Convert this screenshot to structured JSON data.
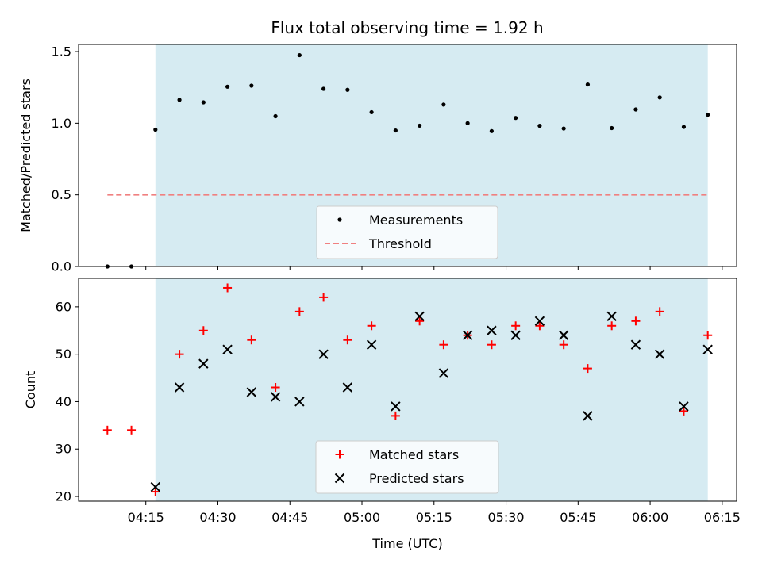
{
  "chart_data": [
    {
      "type": "scatter",
      "title": "Flux total observing time = 1.92 h",
      "xlabel": "",
      "ylabel": "Matched/Predicted stars",
      "ylim": [
        0,
        1.55
      ],
      "xlim": [
        "04:01",
        "06:18"
      ],
      "yticks": [
        "0.0",
        "0.5",
        "1.0",
        "1.5"
      ],
      "grid": false,
      "legend_position": "lower-center",
      "shaded_span": {
        "from": "04:17",
        "to": "06:12",
        "color": "#add8e6"
      },
      "threshold": {
        "name": "Threshold",
        "value": 0.5,
        "from": "04:07",
        "to": "06:12",
        "color": "#f08080",
        "style": "dashed"
      },
      "series": [
        {
          "name": "Measurements",
          "color": "#000000",
          "marker": "dot",
          "points": [
            [
              "04:07",
              0.0
            ],
            [
              "04:12",
              0.0
            ],
            [
              "04:17",
              0.955
            ],
            [
              "04:22",
              1.163
            ],
            [
              "04:27",
              1.146
            ],
            [
              "04:32",
              1.255
            ],
            [
              "04:37",
              1.262
            ],
            [
              "04:42",
              1.049
            ],
            [
              "04:47",
              1.475
            ],
            [
              "04:52",
              1.24
            ],
            [
              "04:57",
              1.233
            ],
            [
              "05:02",
              1.077
            ],
            [
              "05:07",
              0.949
            ],
            [
              "05:12",
              0.983
            ],
            [
              "05:17",
              1.13
            ],
            [
              "05:22",
              1.0
            ],
            [
              "05:27",
              0.945
            ],
            [
              "05:32",
              1.037
            ],
            [
              "05:37",
              0.982
            ],
            [
              "05:42",
              0.963
            ],
            [
              "05:47",
              1.27
            ],
            [
              "05:52",
              0.966
            ],
            [
              "05:57",
              1.096
            ],
            [
              "06:02",
              1.18
            ],
            [
              "06:07",
              0.974
            ],
            [
              "06:12",
              1.059
            ]
          ]
        }
      ]
    },
    {
      "type": "scatter",
      "title": "",
      "xlabel": "Time (UTC)",
      "ylabel": "Count",
      "ylim": [
        19,
        66
      ],
      "xlim": [
        "04:01",
        "06:18"
      ],
      "yticks": [
        "20",
        "30",
        "40",
        "50",
        "60"
      ],
      "xticks": [
        "04:15",
        "04:30",
        "04:45",
        "05:00",
        "05:15",
        "05:30",
        "05:45",
        "06:00",
        "06:15"
      ],
      "grid": false,
      "legend_position": "lower-center",
      "shaded_span": {
        "from": "04:17",
        "to": "06:12",
        "color": "#add8e6"
      },
      "series": [
        {
          "name": "Matched stars",
          "color": "#ff0000",
          "marker": "plus",
          "points": [
            [
              "04:07",
              34
            ],
            [
              "04:12",
              34
            ],
            [
              "04:17",
              21
            ],
            [
              "04:22",
              50
            ],
            [
              "04:27",
              55
            ],
            [
              "04:32",
              64
            ],
            [
              "04:37",
              53
            ],
            [
              "04:42",
              43
            ],
            [
              "04:47",
              59
            ],
            [
              "04:52",
              62
            ],
            [
              "04:57",
              53
            ],
            [
              "05:02",
              56
            ],
            [
              "05:07",
              37
            ],
            [
              "05:12",
              57
            ],
            [
              "05:17",
              52
            ],
            [
              "05:22",
              54
            ],
            [
              "05:27",
              52
            ],
            [
              "05:32",
              56
            ],
            [
              "05:37",
              56
            ],
            [
              "05:42",
              52
            ],
            [
              "05:47",
              47
            ],
            [
              "05:52",
              56
            ],
            [
              "05:57",
              57
            ],
            [
              "06:02",
              59
            ],
            [
              "06:07",
              38
            ],
            [
              "06:12",
              54
            ]
          ]
        },
        {
          "name": "Predicted stars",
          "color": "#000000",
          "marker": "x",
          "points": [
            [
              "04:17",
              22
            ],
            [
              "04:22",
              43
            ],
            [
              "04:27",
              48
            ],
            [
              "04:32",
              51
            ],
            [
              "04:37",
              42
            ],
            [
              "04:42",
              41
            ],
            [
              "04:47",
              40
            ],
            [
              "04:52",
              50
            ],
            [
              "04:57",
              43
            ],
            [
              "05:02",
              52
            ],
            [
              "05:07",
              39
            ],
            [
              "05:12",
              58
            ],
            [
              "05:17",
              46
            ],
            [
              "05:22",
              54
            ],
            [
              "05:27",
              55
            ],
            [
              "05:32",
              54
            ],
            [
              "05:37",
              57
            ],
            [
              "05:42",
              54
            ],
            [
              "05:47",
              37
            ],
            [
              "05:52",
              58
            ],
            [
              "05:57",
              52
            ],
            [
              "06:02",
              50
            ],
            [
              "06:07",
              39
            ],
            [
              "06:12",
              51
            ]
          ]
        }
      ]
    }
  ]
}
